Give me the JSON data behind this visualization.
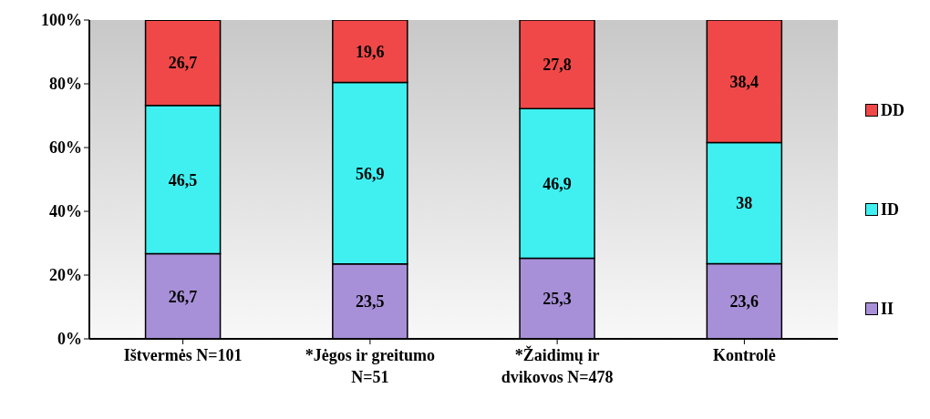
{
  "chart_data": {
    "type": "bar",
    "stacked": true,
    "categories": [
      "Ištvermės N=101",
      "*Jėgos ir greitumo\nN=51",
      "*Žaidimų ir\ndvikovos N=478",
      "Kontrolė"
    ],
    "series": [
      {
        "name": "II",
        "color": "#a890d8",
        "values": [
          26.7,
          23.5,
          25.3,
          23.6
        ],
        "value_labels": [
          "26,7",
          "23,5",
          "25,3",
          "23,6"
        ]
      },
      {
        "name": "ID",
        "color": "#40f0f0",
        "values": [
          46.5,
          56.9,
          46.9,
          38
        ],
        "value_labels": [
          "46,5",
          "56,9",
          "46,9",
          "38"
        ]
      },
      {
        "name": "DD",
        "color": "#f04848",
        "values": [
          26.7,
          19.6,
          27.8,
          38.4
        ],
        "value_labels": [
          "26,7",
          "19,6",
          "27,8",
          "38,4"
        ]
      }
    ],
    "ylim": [
      0,
      100
    ],
    "yticks": [
      {
        "value": 0,
        "label": "0%"
      },
      {
        "value": 20,
        "label": "20%"
      },
      {
        "value": 40,
        "label": "40%"
      },
      {
        "value": 60,
        "label": "60%"
      },
      {
        "value": 80,
        "label": "80%"
      },
      {
        "value": 100,
        "label": "100%"
      }
    ],
    "legend": "right"
  }
}
